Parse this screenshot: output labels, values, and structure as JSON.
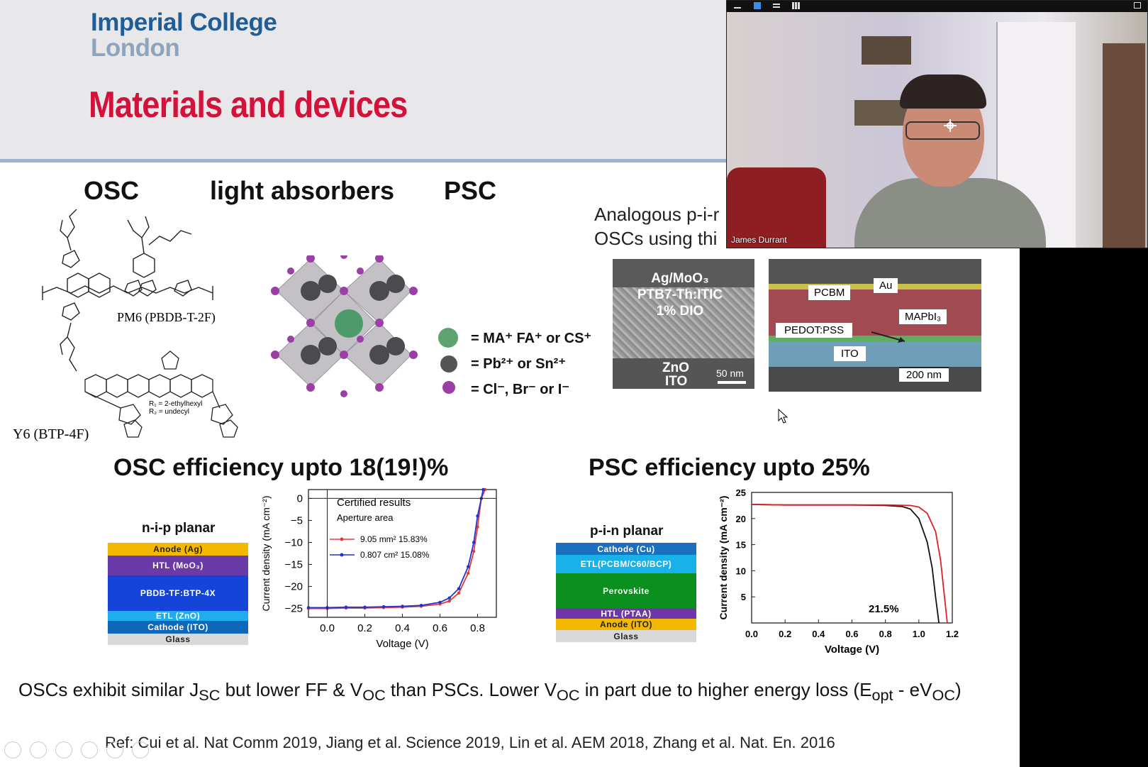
{
  "slide": {
    "logo_line1": "Imperial College",
    "logo_line2": "London",
    "title": "Materials and devices",
    "col_osc": "OSC",
    "col_absorbers": "light absorbers",
    "col_psc": "PSC",
    "analogous_line1": "Analogous p-i-r",
    "analogous_line2": "OSCs using thi",
    "molecule_pm6": "PM6 (PBDB-T-2F)",
    "molecule_y6": "Y6 (BTP-4F)",
    "y6_r1": "R₁ = 2-ethylhexyl",
    "y6_r2": "R₂ = undecyl",
    "legend": {
      "cation": "= MA⁺ FA⁺ or CS⁺",
      "metal": "= Pb²⁺ or Sn²⁺",
      "halide": "= Cl⁻, Br⁻ or I⁻",
      "cation_color": "#5fa372",
      "metal_color": "#555555",
      "halide_color": "#9b3fa6"
    },
    "sem_left": {
      "line1": "Ag/MoO₃",
      "line2": "PTB7-Th:ITIC",
      "line3": "1% DIO",
      "line4": "ZnO",
      "line5": "ITO",
      "scale": "50 nm"
    },
    "sem_right": {
      "pcbm": "PCBM",
      "au": "Au",
      "mapbi": "MAPbI₃",
      "pedot": "PEDOT:PSS",
      "ito": "ITO",
      "scale": "200 nm"
    },
    "osc_eff": "OSC efficiency upto 18(19!)%",
    "psc_eff": "PSC efficiency upto 25%",
    "nip_title": "n-i-p planar",
    "nip_layers": [
      "Anode (Ag)",
      "HTL (MoO₃)",
      "PBDB-TF:BTP-4X",
      "ETL (ZnO)",
      "Cathode (ITO)",
      "Glass"
    ],
    "pin_title": "p-i-n planar",
    "pin_layers": [
      "Cathode (Cu)",
      "ETL(PCBM/C60/BCP)",
      "Perovskite",
      "HTL (PTAA)",
      "Anode (ITO)",
      "Glass"
    ],
    "bottom_parts": [
      "OSCs exhibit similar J",
      "SC",
      " but lower FF & V",
      "OC",
      " than PSCs. Lower V",
      "OC",
      " in part due to higher energy loss (E",
      "opt",
      " - eV",
      "OC",
      ")"
    ],
    "ref": "Ref: Cui et al. Nat Comm 2019, Jiang et al. Science 2019, Lin et al. AEM 2018, Zhang et al. Nat. En. 2016"
  },
  "video": {
    "participant_name": "James Durrant"
  },
  "chart_data": [
    {
      "type": "line",
      "xlabel": "Voltage (V)",
      "ylabel": "Current density (mA cm⁻²)",
      "xlim": [
        -0.1,
        0.9
      ],
      "ylim": [
        -27,
        2
      ],
      "xticks": [
        "0.0",
        "0.2",
        "0.4",
        "0.6",
        "0.8"
      ],
      "yticks": [
        "0",
        "−5",
        "−10",
        "−15",
        "−20",
        "−25"
      ],
      "legend_title": "Certified results",
      "legend_subtitle": "Aperture area",
      "series": [
        {
          "name": "9.05  mm² 15.83%",
          "color": "#e53935",
          "x": [
            -0.1,
            0.0,
            0.1,
            0.2,
            0.3,
            0.4,
            0.5,
            0.6,
            0.65,
            0.7,
            0.75,
            0.78,
            0.8,
            0.82,
            0.84
          ],
          "y": [
            -25.0,
            -25.0,
            -24.9,
            -24.9,
            -24.8,
            -24.7,
            -24.5,
            -24.0,
            -23.3,
            -21.5,
            -17.0,
            -12.0,
            -6.5,
            0.0,
            2.0
          ]
        },
        {
          "name": "0.807 cm² 15.08%",
          "color": "#2233cc",
          "x": [
            -0.1,
            0.0,
            0.1,
            0.2,
            0.3,
            0.4,
            0.5,
            0.6,
            0.65,
            0.7,
            0.75,
            0.78,
            0.8,
            0.82,
            0.83
          ],
          "y": [
            -24.8,
            -24.8,
            -24.7,
            -24.7,
            -24.6,
            -24.5,
            -24.3,
            -23.6,
            -22.6,
            -20.5,
            -15.5,
            -10.0,
            -4.0,
            0.0,
            2.0
          ]
        }
      ]
    },
    {
      "type": "line",
      "xlabel": "Voltage (V)",
      "ylabel": "Current density (mA cm⁻²)",
      "xlim": [
        0.0,
        1.2
      ],
      "ylim": [
        0,
        25
      ],
      "xticks": [
        "0.0",
        "0.2",
        "0.4",
        "0.6",
        "0.8",
        "1.0",
        "1.2"
      ],
      "yticks": [
        "5",
        "10",
        "15",
        "20",
        "25"
      ],
      "annotation": "21.5%",
      "series": [
        {
          "color": "#111111",
          "x": [
            0.0,
            0.2,
            0.4,
            0.6,
            0.8,
            0.9,
            0.95,
            1.0,
            1.05,
            1.08,
            1.1,
            1.12
          ],
          "y": [
            22.7,
            22.6,
            22.6,
            22.6,
            22.5,
            22.3,
            21.8,
            20.0,
            15.5,
            10.5,
            5.0,
            0.0
          ]
        },
        {
          "color": "#e0202a",
          "x": [
            0.0,
            0.2,
            0.4,
            0.6,
            0.8,
            0.95,
            1.0,
            1.05,
            1.1,
            1.13,
            1.15,
            1.17
          ],
          "y": [
            22.7,
            22.6,
            22.6,
            22.6,
            22.6,
            22.5,
            22.2,
            21.0,
            17.5,
            12.0,
            6.0,
            0.0
          ]
        }
      ]
    }
  ]
}
